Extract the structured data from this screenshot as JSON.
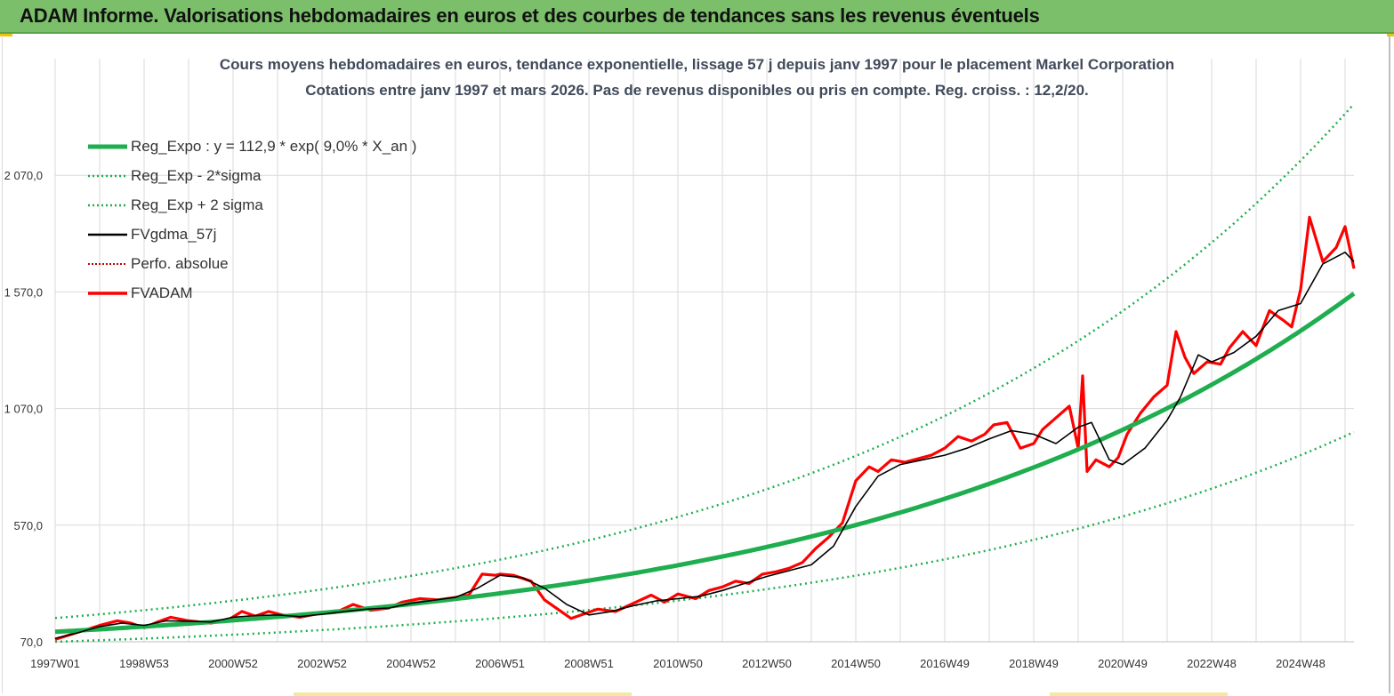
{
  "header": {
    "title": "ADAM Informe. Valorisations hebdomadaires en euros et des courbes de tendances sans les revenus éventuels"
  },
  "colors": {
    "header_bg": "#7bbf6a",
    "reg_expo": "#1fae4f",
    "sigma": "#1fae4f",
    "fvgdma": "#000000",
    "perfo": "#c00000",
    "fvadam": "#ff0000",
    "grid": "#d9d9d9"
  },
  "chart_data": {
    "type": "line",
    "title_line1": "Cours moyens hebdomadaires en euros, tendance exponentielle, lissage 57 j depuis janv 1997 pour le placement Markel Corporation",
    "title_line2": "Cotations entre janv 1997 et mars 2026. Pas de revenus disponibles ou pris en compte. Reg. croiss. : 12,2/20.",
    "x_range": [
      1997.0,
      2026.2
    ],
    "x_tick_labels": [
      "1997W01",
      "1998W53",
      "2000W52",
      "2002W52",
      "2004W52",
      "2006W51",
      "2008W51",
      "2010W50",
      "2012W50",
      "2014W50",
      "2016W49",
      "2018W49",
      "2020W49",
      "2022W48",
      "2024W48"
    ],
    "x_tick_years": [
      1997,
      1999,
      2001,
      2003,
      2005,
      2007,
      2009,
      2011,
      2013,
      2015,
      2017,
      2019,
      2021,
      2023,
      2025
    ],
    "y_tick_labels": [
      "70,0",
      "570,0",
      "1 070,0",
      "1 570,0",
      "2 070,0"
    ],
    "y_ticks": [
      70,
      570,
      1070,
      1570,
      2070
    ],
    "ylim": [
      70,
      2570
    ],
    "legend": [
      {
        "key": "reg_expo",
        "label": "Reg_Expo : y = 112,9 * exp( 9,0% *  X_an )"
      },
      {
        "key": "sigma_minus",
        "label": "Reg_Exp - 2*sigma"
      },
      {
        "key": "sigma_plus",
        "label": "Reg_Exp + 2 sigma"
      },
      {
        "key": "fvgdma",
        "label": "FVgdma_57j"
      },
      {
        "key": "perfo",
        "label": "Perfo. absolue"
      },
      {
        "key": "fvadam",
        "label": "FVADAM"
      }
    ],
    "regression": {
      "a": 112.9,
      "rate": 0.09,
      "start_year": 1997,
      "lower_factor": 0.62,
      "upper_factor": 1.52
    },
    "series": [
      {
        "name": "FVADAM",
        "x": [
          1997.0,
          1997.5,
          1998.0,
          1998.4,
          1998.7,
          1999.0,
          1999.3,
          1999.6,
          2000.0,
          2000.5,
          2000.9,
          2001.2,
          2001.5,
          2001.8,
          2002.1,
          2002.5,
          2002.9,
          2003.3,
          2003.7,
          2004.1,
          2004.5,
          2004.8,
          2005.2,
          2005.6,
          2006.0,
          2006.3,
          2006.6,
          2006.9,
          2007.0,
          2007.3,
          2007.7,
          2008.0,
          2008.3,
          2008.6,
          2008.9,
          2009.2,
          2009.6,
          2010.0,
          2010.4,
          2010.7,
          2011.0,
          2011.4,
          2011.7,
          2012.0,
          2012.3,
          2012.6,
          2012.9,
          2013.2,
          2013.5,
          2013.8,
          2014.1,
          2014.4,
          2014.7,
          2015.0,
          2015.3,
          2015.5,
          2015.8,
          2016.1,
          2016.4,
          2016.7,
          2017.0,
          2017.3,
          2017.6,
          2017.9,
          2018.1,
          2018.4,
          2018.7,
          2019.0,
          2019.2,
          2019.5,
          2019.8,
          2020.0,
          2020.1,
          2020.2,
          2020.4,
          2020.7,
          2020.9,
          2021.1,
          2021.4,
          2021.7,
          2022.0,
          2022.2,
          2022.4,
          2022.6,
          2022.9,
          2023.2,
          2023.4,
          2023.7,
          2024.0,
          2024.3,
          2024.6,
          2024.8,
          2025.0,
          2025.2,
          2025.5,
          2025.8,
          2026.0,
          2026.2
        ],
        "y": [
          80,
          110,
          140,
          160,
          150,
          130,
          155,
          175,
          160,
          150,
          165,
          200,
          180,
          200,
          185,
          175,
          190,
          195,
          230,
          205,
          215,
          240,
          255,
          250,
          260,
          270,
          360,
          355,
          360,
          355,
          330,
          250,
          210,
          170,
          190,
          210,
          200,
          235,
          270,
          240,
          275,
          255,
          290,
          305,
          330,
          320,
          360,
          370,
          385,
          410,
          470,
          520,
          580,
          760,
          820,
          800,
          850,
          840,
          855,
          870,
          900,
          950,
          930,
          960,
          1000,
          1010,
          900,
          920,
          980,
          1030,
          1080,
          900,
          1210,
          800,
          850,
          820,
          860,
          960,
          1050,
          1120,
          1170,
          1400,
          1290,
          1220,
          1270,
          1260,
          1330,
          1400,
          1340,
          1490,
          1450,
          1420,
          1580,
          1890,
          1700,
          1760,
          1850,
          1670
        ]
      },
      {
        "name": "FVgdma_57j",
        "x": [
          1997.0,
          1997.5,
          1998.0,
          1998.5,
          1999.0,
          1999.5,
          2000.0,
          2000.5,
          2001.0,
          2001.5,
          2002.0,
          2002.5,
          2003.0,
          2003.5,
          2004.0,
          2004.5,
          2005.0,
          2005.5,
          2006.0,
          2006.5,
          2007.0,
          2007.5,
          2008.0,
          2008.5,
          2009.0,
          2009.5,
          2010.0,
          2010.5,
          2011.0,
          2011.5,
          2012.0,
          2012.5,
          2013.0,
          2013.5,
          2014.0,
          2014.5,
          2015.0,
          2015.5,
          2016.0,
          2016.5,
          2017.0,
          2017.5,
          2018.0,
          2018.5,
          2019.0,
          2019.5,
          2020.0,
          2020.3,
          2020.7,
          2021.0,
          2021.5,
          2022.0,
          2022.3,
          2022.7,
          2023.0,
          2023.5,
          2024.0,
          2024.5,
          2025.0,
          2025.5,
          2026.0,
          2026.2
        ],
        "y": [
          85,
          108,
          135,
          150,
          140,
          160,
          158,
          155,
          175,
          182,
          185,
          178,
          188,
          200,
          210,
          215,
          235,
          248,
          260,
          300,
          355,
          345,
          300,
          230,
          185,
          200,
          225,
          245,
          255,
          265,
          290,
          320,
          350,
          375,
          400,
          480,
          650,
          780,
          830,
          850,
          870,
          900,
          940,
          975,
          960,
          920,
          990,
          1010,
          850,
          830,
          900,
          1020,
          1120,
          1300,
          1270,
          1310,
          1380,
          1490,
          1520,
          1690,
          1740,
          1700
        ]
      }
    ]
  }
}
